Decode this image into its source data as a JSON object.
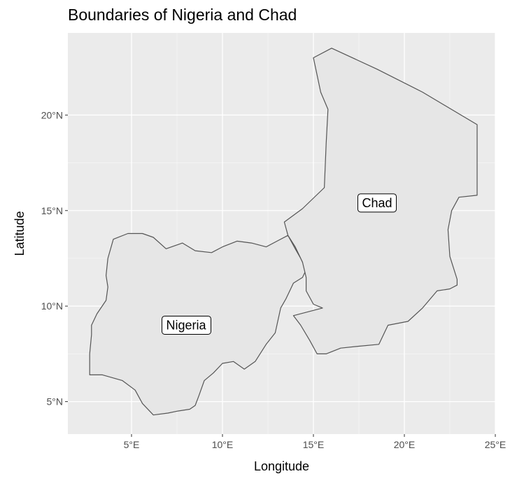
{
  "title": "Boundaries of Nigeria and Chad",
  "colors": {
    "panel": "#ebebeb",
    "grid": "#ffffff",
    "fill": "#e6e6e6",
    "border": "#555555",
    "tick_text": "#4d4d4d"
  },
  "chart_data": {
    "type": "map",
    "title": "Boundaries of Nigeria and Chad",
    "xlabel": "Longitude",
    "ylabel": "Latitude",
    "xlim": [
      1.5,
      25
    ],
    "ylim": [
      3.3,
      24.3
    ],
    "x_ticks": [
      {
        "value": 5,
        "label": "5°E"
      },
      {
        "value": 10,
        "label": "10°E"
      },
      {
        "value": 15,
        "label": "15°E"
      },
      {
        "value": 20,
        "label": "20°E"
      },
      {
        "value": 25,
        "label": "25°E"
      }
    ],
    "y_ticks": [
      {
        "value": 5,
        "label": "5°N"
      },
      {
        "value": 10,
        "label": "10°N"
      },
      {
        "value": 15,
        "label": "15°N"
      },
      {
        "value": 20,
        "label": "20°N"
      }
    ],
    "grid": true,
    "countries": [
      {
        "name": "Nigeria",
        "label": "Nigeria",
        "label_lon": 8.0,
        "label_lat": 9.0,
        "boundary": [
          [
            2.7,
            6.4
          ],
          [
            2.7,
            7.5
          ],
          [
            2.8,
            8.5
          ],
          [
            2.8,
            9.0
          ],
          [
            3.1,
            9.6
          ],
          [
            3.6,
            10.3
          ],
          [
            3.7,
            11.0
          ],
          [
            3.6,
            11.6
          ],
          [
            3.7,
            12.5
          ],
          [
            4.0,
            13.5
          ],
          [
            4.8,
            13.8
          ],
          [
            5.6,
            13.8
          ],
          [
            6.2,
            13.6
          ],
          [
            6.9,
            13.0
          ],
          [
            7.8,
            13.3
          ],
          [
            8.5,
            12.9
          ],
          [
            9.4,
            12.8
          ],
          [
            10.0,
            13.1
          ],
          [
            10.8,
            13.4
          ],
          [
            11.6,
            13.3
          ],
          [
            12.4,
            13.1
          ],
          [
            13.0,
            13.4
          ],
          [
            13.6,
            13.7
          ],
          [
            14.0,
            13.0
          ],
          [
            14.3,
            12.5
          ],
          [
            14.6,
            11.9
          ],
          [
            14.4,
            11.5
          ],
          [
            13.9,
            11.2
          ],
          [
            13.5,
            10.4
          ],
          [
            13.2,
            9.9
          ],
          [
            12.9,
            8.6
          ],
          [
            12.4,
            8.0
          ],
          [
            11.8,
            7.1
          ],
          [
            11.2,
            6.7
          ],
          [
            10.6,
            7.1
          ],
          [
            10.0,
            7.0
          ],
          [
            9.5,
            6.5
          ],
          [
            9.0,
            6.1
          ],
          [
            8.7,
            5.3
          ],
          [
            8.5,
            4.8
          ],
          [
            8.2,
            4.6
          ],
          [
            7.5,
            4.5
          ],
          [
            7.0,
            4.4
          ],
          [
            6.2,
            4.3
          ],
          [
            5.6,
            4.9
          ],
          [
            5.2,
            5.6
          ],
          [
            4.5,
            6.1
          ],
          [
            3.4,
            6.4
          ]
        ]
      },
      {
        "name": "Chad",
        "label": "Chad",
        "label_lon": 18.5,
        "label_lat": 15.4,
        "boundary": [
          [
            15.0,
            23.0
          ],
          [
            16.0,
            23.5
          ],
          [
            18.5,
            22.4
          ],
          [
            21.0,
            21.2
          ],
          [
            24.0,
            19.5
          ],
          [
            24.0,
            15.8
          ],
          [
            23.0,
            15.7
          ],
          [
            22.6,
            15.0
          ],
          [
            22.4,
            14.0
          ],
          [
            22.5,
            12.6
          ],
          [
            22.9,
            11.4
          ],
          [
            22.9,
            11.1
          ],
          [
            22.5,
            10.9
          ],
          [
            21.8,
            10.8
          ],
          [
            21.0,
            9.9
          ],
          [
            20.2,
            9.2
          ],
          [
            19.1,
            9.0
          ],
          [
            18.9,
            8.6
          ],
          [
            18.6,
            8.0
          ],
          [
            17.5,
            7.9
          ],
          [
            16.5,
            7.8
          ],
          [
            15.7,
            7.5
          ],
          [
            15.2,
            7.5
          ],
          [
            14.8,
            8.2
          ],
          [
            14.3,
            9.0
          ],
          [
            13.9,
            9.5
          ],
          [
            15.5,
            9.9
          ],
          [
            15.0,
            10.1
          ],
          [
            14.6,
            10.8
          ],
          [
            14.6,
            11.5
          ],
          [
            14.4,
            12.3
          ],
          [
            14.0,
            13.1
          ],
          [
            13.6,
            13.7
          ],
          [
            13.4,
            14.4
          ],
          [
            14.4,
            15.1
          ],
          [
            15.6,
            16.2
          ],
          [
            15.7,
            18.5
          ],
          [
            15.8,
            20.3
          ],
          [
            15.4,
            21.2
          ],
          [
            15.2,
            22.1
          ]
        ]
      }
    ]
  }
}
